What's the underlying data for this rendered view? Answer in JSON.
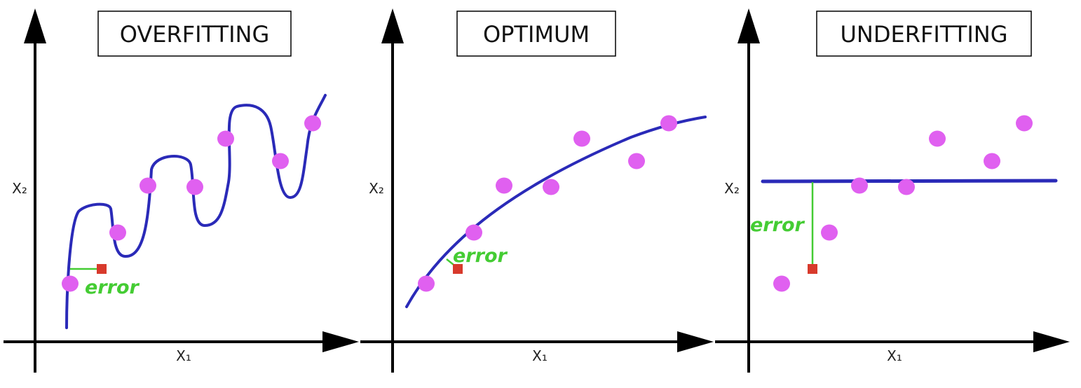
{
  "colors": {
    "curve": "#2a2ab8",
    "point": "#e060f0",
    "error_marker": "#d83a2c",
    "error": "#44cc33",
    "axis": "#000000"
  },
  "panels": [
    {
      "id": "overfitting",
      "title": "OVERFITTING",
      "x_axis_label": "X₁",
      "y_axis_label": "X₂",
      "error_label": "error",
      "fit": "wiggly-curve-through-all-points"
    },
    {
      "id": "optimum",
      "title": "OPTIMUM",
      "x_axis_label": "X₁",
      "y_axis_label": "X₂",
      "error_label": "error",
      "fit": "smooth-concave-curve"
    },
    {
      "id": "underfitting",
      "title": "UNDERFITTING",
      "x_axis_label": "X₁",
      "y_axis_label": "X₂",
      "error_label": "error",
      "fit": "horizontal-line"
    }
  ]
}
